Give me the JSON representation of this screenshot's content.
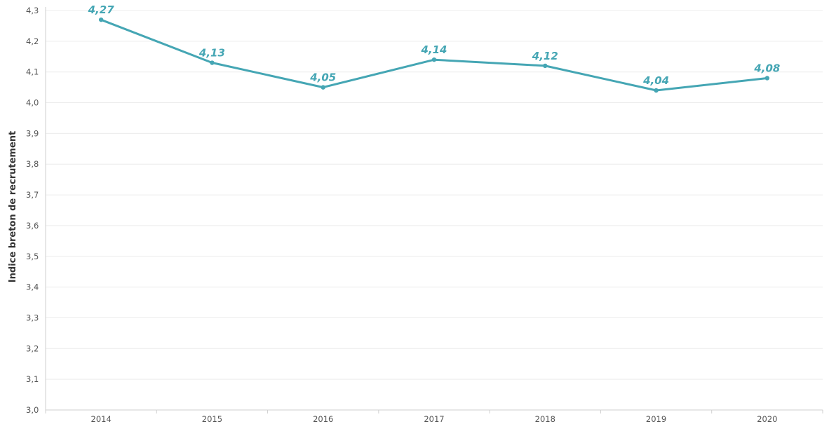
{
  "colors": {
    "series": "#45a6b4",
    "grid": "#ececec",
    "axis": "#cfcfcf"
  },
  "chart_data": {
    "type": "line",
    "ylabel": "Indice breton de recrutement",
    "xlabel": "",
    "ylim": [
      3.0,
      4.3
    ],
    "yticks": [
      3.0,
      3.1,
      3.2,
      3.3,
      3.4,
      3.5,
      3.6,
      3.7,
      3.8,
      3.9,
      4.0,
      4.1,
      4.2,
      4.3
    ],
    "ytick_labels": [
      "3,0",
      "3,1",
      "3,2",
      "3,3",
      "3,4",
      "3,5",
      "3,6",
      "3,7",
      "3,8",
      "3,9",
      "4,0",
      "4,1",
      "4,2",
      "4,3"
    ],
    "categories": [
      "2014",
      "2015",
      "2016",
      "2017",
      "2018",
      "2019",
      "2020"
    ],
    "series": [
      {
        "values": [
          4.27,
          4.13,
          4.05,
          4.14,
          4.12,
          4.04,
          4.08
        ],
        "labels": [
          "4,27",
          "4,13",
          "4,05",
          "4,14",
          "4,12",
          "4,04",
          "4,08"
        ]
      }
    ],
    "grid": true,
    "legend": "none"
  }
}
